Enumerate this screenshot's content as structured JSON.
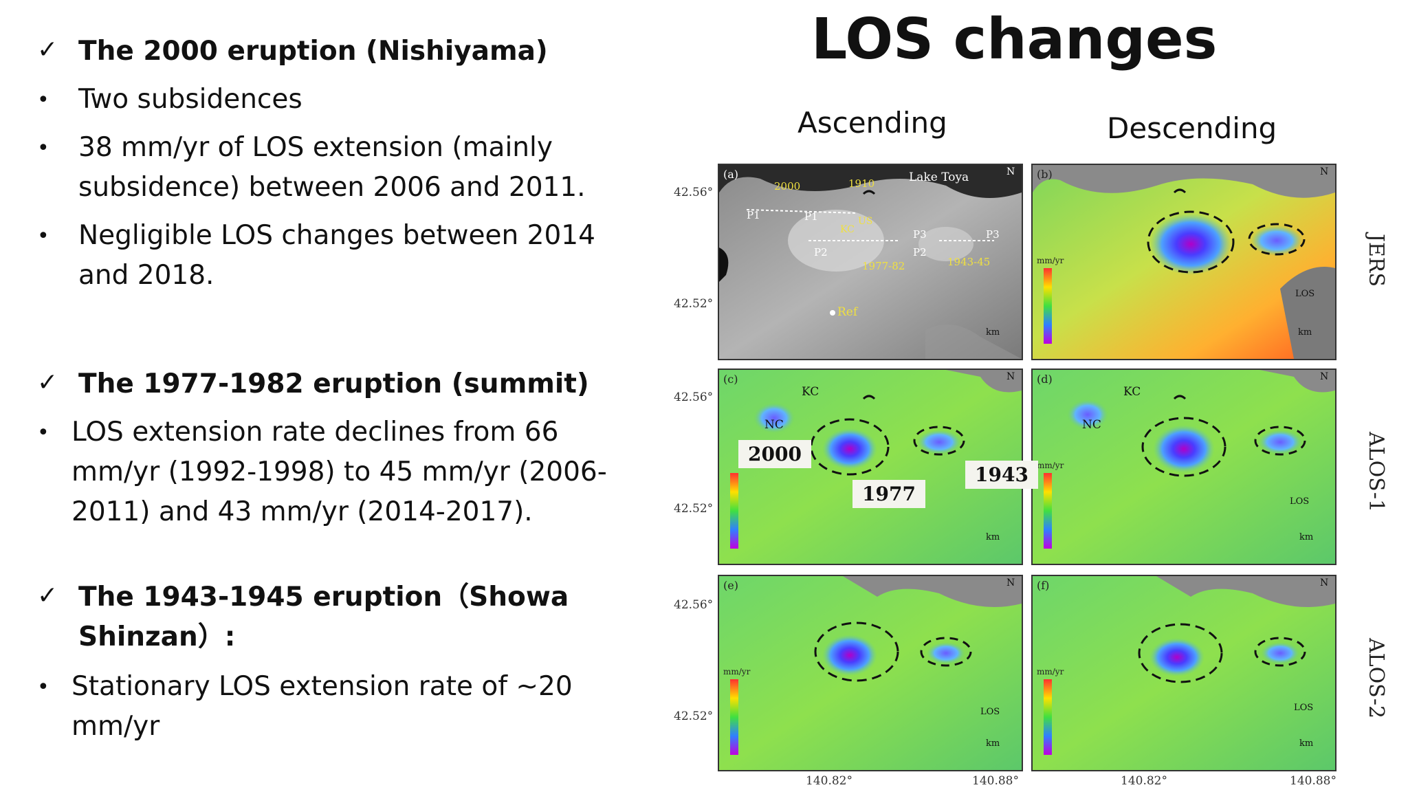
{
  "slide": {
    "title": "LOS changes",
    "sections": [
      {
        "heading": "The 2000 eruption (Nishiyama)",
        "bullets": [
          "Two subsidences",
          "38 mm/yr of LOS extension (mainly",
          "subsidence) between 2006 and 2011.",
          "Negligible LOS changes between 2014",
          "and 2018."
        ]
      },
      {
        "heading": "The 1977-1982 eruption (summit)",
        "bullets": [
          "LOS extension rate declines from 66",
          "mm/yr (1992-1998) to 45 mm/yr (2006-",
          "2011) and 43 mm/yr (2014-2017)."
        ]
      },
      {
        "heading_line1": "The 1943-1945 eruption（Showa",
        "heading_line2": "Shinzan）:",
        "bullets": [
          "Stationary LOS extension rate of ~20",
          "mm/yr"
        ]
      }
    ],
    "check_mark": "✓",
    "bullet_mark": "•"
  },
  "figure": {
    "col_ascending": "Ascending",
    "col_descending": "Descending",
    "rows": [
      "JERS",
      "ALOS-1",
      "ALOS-2"
    ],
    "panels": [
      "(a)",
      "(b)",
      "(c)",
      "(d)",
      "(e)",
      "(f)"
    ],
    "lat_top": "42.56°",
    "lat_bottom": "42.52°",
    "lon_left": "140.82°",
    "lon_right": "140.88°",
    "callouts": [
      "2000",
      "1977",
      "1943"
    ],
    "map_labels": {
      "lake": "Lake Toya",
      "y2000": "2000",
      "y1910": "1910",
      "y1977": "1977-82",
      "y1943": "1943-45",
      "ref": "Ref",
      "kc": "KC",
      "nc": "NC",
      "us": "US",
      "p1": "P1",
      "p1b": "P1",
      "p2": "P2",
      "p2b": "P2",
      "p3": "P3",
      "p3b": "P3",
      "north": "N",
      "los": "LOS",
      "km": "km",
      "unit": "mm/yr",
      "scale_vals": [
        "20",
        "0",
        "-20",
        "-40"
      ]
    }
  }
}
